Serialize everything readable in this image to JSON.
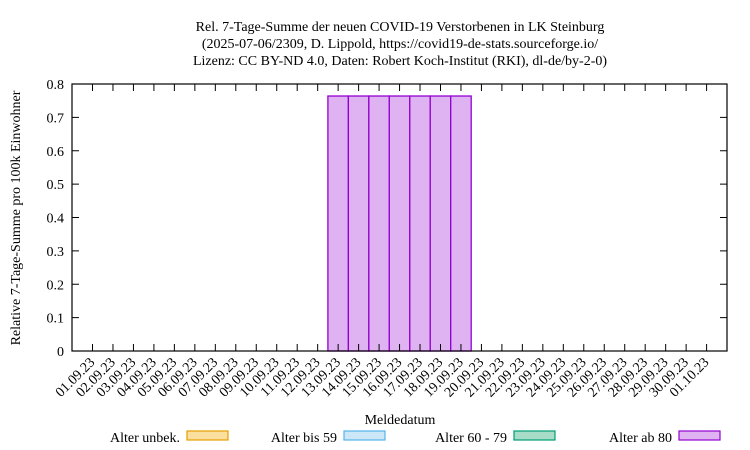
{
  "chart_data": {
    "type": "bar",
    "stacked": true,
    "title_lines": [
      "Rel. 7-Tage-Summe der neuen COVID-19 Verstorbenen in LK Steinburg",
      "(2025-07-06/2309, D. Lippold, https://covid19-de-stats.sourceforge.io/",
      "Lizenz: CC BY-ND 4.0, Daten: Robert Koch-Institut (RKI), dl-de/by-2-0)"
    ],
    "xlabel": "Meldedatum",
    "ylabel": "Relative 7-Tage-Summe pro 100k Einwohner",
    "ylim": [
      0,
      0.8
    ],
    "yticks": [
      "0",
      "0.1",
      "0.2",
      "0.3",
      "0.4",
      "0.5",
      "0.6",
      "0.7",
      "0.8"
    ],
    "grid": false,
    "legend_placement": "bottom",
    "categories": [
      "01.09.23",
      "02.09.23",
      "03.09.23",
      "04.09.23",
      "05.09.23",
      "06.09.23",
      "07.09.23",
      "08.09.23",
      "09.09.23",
      "10.09.23",
      "11.09.23",
      "12.09.23",
      "13.09.23",
      "14.09.23",
      "15.09.23",
      "16.09.23",
      "17.09.23",
      "18.09.23",
      "19.09.23",
      "20.09.23",
      "21.09.23",
      "22.09.23",
      "23.09.23",
      "24.09.23",
      "25.09.23",
      "26.09.23",
      "27.09.23",
      "28.09.23",
      "29.09.23",
      "30.09.23",
      "01.10.23"
    ],
    "series": [
      {
        "name": "Alter unbek.",
        "stroke": "#e69f00",
        "fill": "#fbdf9f",
        "values": [
          0,
          0,
          0,
          0,
          0,
          0,
          0,
          0,
          0,
          0,
          0,
          0,
          0,
          0,
          0,
          0,
          0,
          0,
          0,
          0,
          0,
          0,
          0,
          0,
          0,
          0,
          0,
          0,
          0,
          0,
          0
        ]
      },
      {
        "name": "Alter bis 59",
        "stroke": "#56b4e9",
        "fill": "#cce8f8",
        "values": [
          0,
          0,
          0,
          0,
          0,
          0,
          0,
          0,
          0,
          0,
          0,
          0,
          0,
          0,
          0,
          0,
          0,
          0,
          0,
          0,
          0,
          0,
          0,
          0,
          0,
          0,
          0,
          0,
          0,
          0,
          0
        ]
      },
      {
        "name": "Alter 60 - 79",
        "stroke": "#009e73",
        "fill": "#a6dcc8",
        "values": [
          0,
          0,
          0,
          0,
          0,
          0,
          0,
          0,
          0,
          0,
          0,
          0,
          0,
          0,
          0,
          0,
          0,
          0,
          0,
          0,
          0,
          0,
          0,
          0,
          0,
          0,
          0,
          0,
          0,
          0,
          0
        ]
      },
      {
        "name": "Alter ab 80",
        "stroke": "#9400d3",
        "fill": "#dfb3f1",
        "values": [
          0,
          0,
          0,
          0,
          0,
          0,
          0,
          0,
          0,
          0,
          0,
          0,
          0.764,
          0.764,
          0.764,
          0.764,
          0.764,
          0.764,
          0.764,
          0,
          0,
          0,
          0,
          0,
          0,
          0,
          0,
          0,
          0,
          0,
          0
        ]
      }
    ]
  }
}
